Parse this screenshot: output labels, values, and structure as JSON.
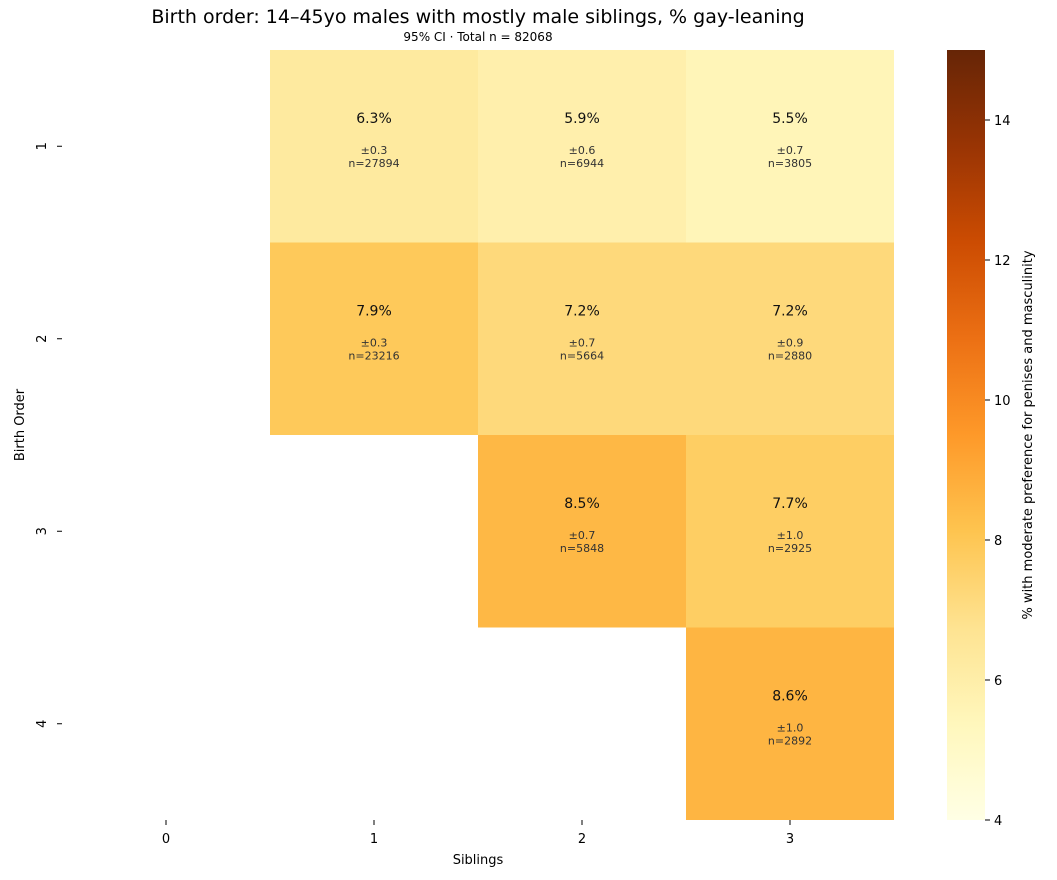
{
  "chart_data": {
    "type": "heatmap",
    "title": "Birth order: 14–45yo males with mostly male siblings, % gay-leaning",
    "subtitle": "95% CI · Total n = 82068",
    "xlabel": "Siblings",
    "ylabel": "Birth Order",
    "x_categories": [
      "0",
      "1",
      "2",
      "3"
    ],
    "y_categories": [
      "1",
      "2",
      "3",
      "4"
    ],
    "colorbar": {
      "label": "% with moderate preference for penises and masculinity",
      "range": [
        4,
        15
      ],
      "ticks": [
        "4",
        "6",
        "8",
        "10",
        "12",
        "14"
      ],
      "colormap": "YlOrBr",
      "stops": [
        "#ffffe5",
        "#fff7bc",
        "#fee391",
        "#fec44f",
        "#fe9929",
        "#ec7014",
        "#cc4c02",
        "#993404",
        "#662506"
      ]
    },
    "cells": [
      {
        "birth_order": 1,
        "siblings": 1,
        "value": 6.3,
        "label": "6.3%",
        "ci": "±0.3",
        "n": "n=27894"
      },
      {
        "birth_order": 1,
        "siblings": 2,
        "value": 5.9,
        "label": "5.9%",
        "ci": "±0.6",
        "n": "n=6944"
      },
      {
        "birth_order": 1,
        "siblings": 3,
        "value": 5.5,
        "label": "5.5%",
        "ci": "±0.7",
        "n": "n=3805"
      },
      {
        "birth_order": 2,
        "siblings": 1,
        "value": 7.9,
        "label": "7.9%",
        "ci": "±0.3",
        "n": "n=23216"
      },
      {
        "birth_order": 2,
        "siblings": 2,
        "value": 7.2,
        "label": "7.2%",
        "ci": "±0.7",
        "n": "n=5664"
      },
      {
        "birth_order": 2,
        "siblings": 3,
        "value": 7.2,
        "label": "7.2%",
        "ci": "±0.9",
        "n": "n=2880"
      },
      {
        "birth_order": 3,
        "siblings": 2,
        "value": 8.5,
        "label": "8.5%",
        "ci": "±0.7",
        "n": "n=5848"
      },
      {
        "birth_order": 3,
        "siblings": 3,
        "value": 7.7,
        "label": "7.7%",
        "ci": "±1.0",
        "n": "n=2925"
      },
      {
        "birth_order": 4,
        "siblings": 3,
        "value": 8.6,
        "label": "8.6%",
        "ci": "±1.0",
        "n": "n=2892"
      }
    ]
  }
}
